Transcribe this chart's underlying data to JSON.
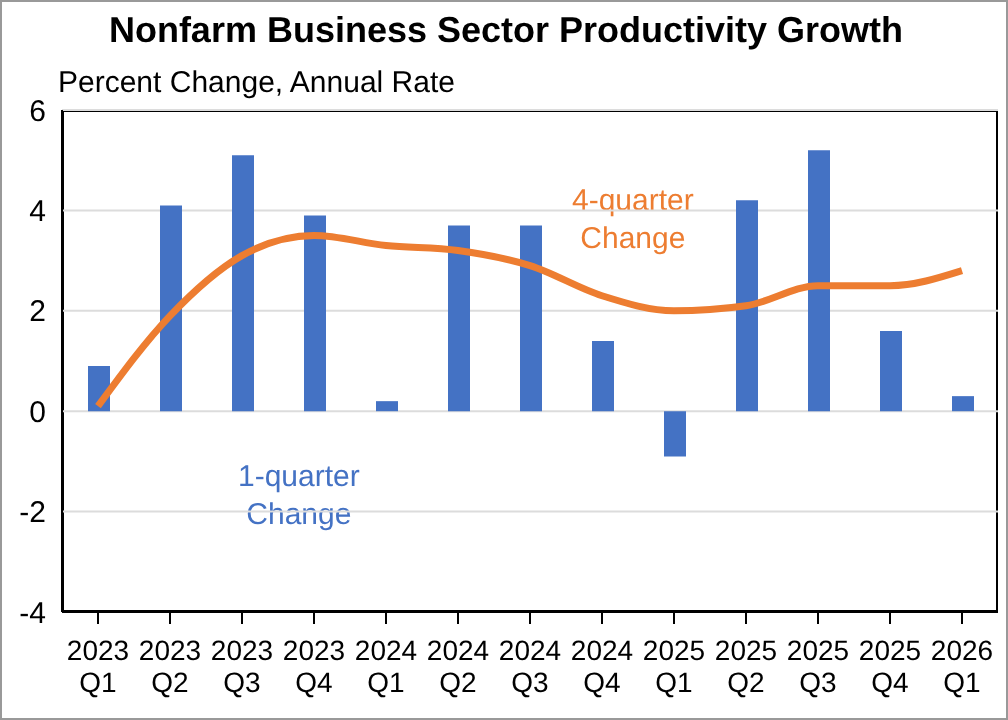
{
  "chart_data": {
    "type": "bar",
    "title": "Nonfarm Business Sector Productivity Growth",
    "ylabel": "Percent Change, Annual Rate",
    "categories": [
      "2023\nQ1",
      "2023\nQ2",
      "2023\nQ3",
      "2023\nQ4",
      "2024\nQ1",
      "2024\nQ2",
      "2024\nQ3",
      "2024\nQ4",
      "2025\nQ1",
      "2025\nQ2",
      "2025\nQ3",
      "2025\nQ4",
      "2026\nQ1"
    ],
    "series": [
      {
        "name": "1-quarter\nChange",
        "color": "#4472c4",
        "values": [
          0.9,
          4.1,
          5.1,
          3.9,
          0.2,
          3.7,
          3.7,
          1.4,
          -0.9,
          4.2,
          5.2,
          1.6,
          0.3
        ]
      },
      {
        "name": "4-quarter\nChange",
        "type": "line",
        "color": "#ed7d31",
        "values": [
          0.1,
          1.9,
          3.1,
          3.5,
          3.3,
          3.2,
          2.9,
          2.3,
          2.0,
          2.1,
          2.5,
          2.5,
          2.8
        ]
      }
    ],
    "ylim": [
      -4,
      6
    ],
    "yticks": [
      -4,
      -2,
      0,
      2,
      4,
      6
    ],
    "grid": "y",
    "marker": "none"
  }
}
